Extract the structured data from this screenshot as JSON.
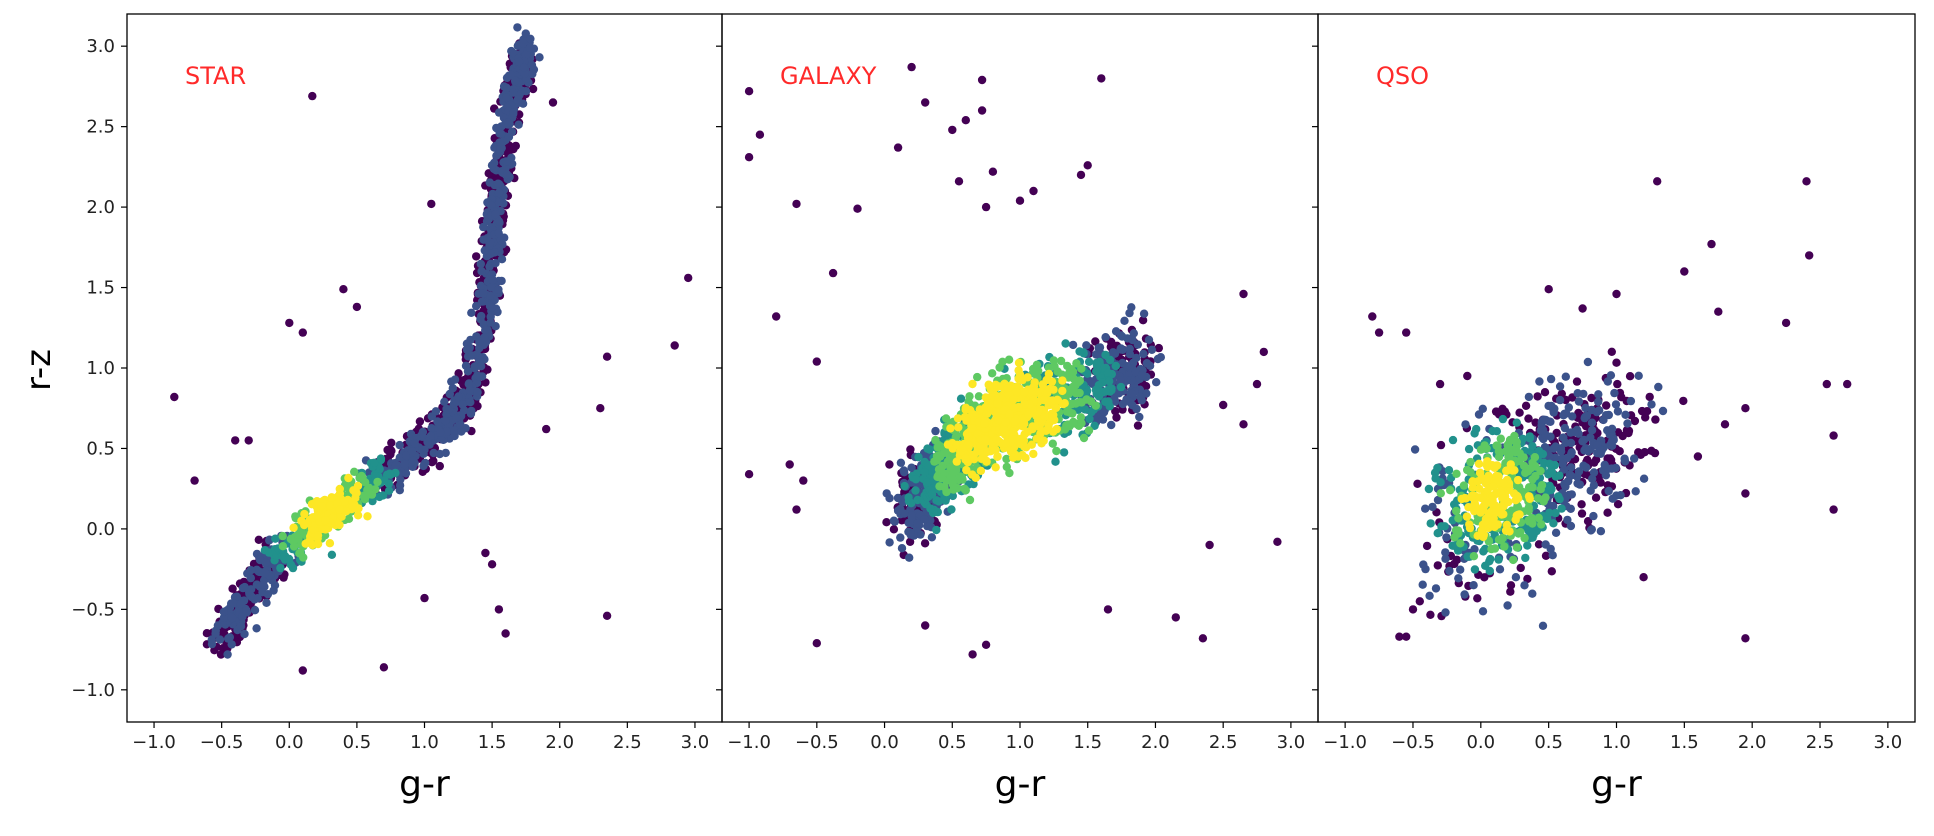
{
  "figure": {
    "ylabel": "r-z",
    "xlabel": "g-r"
  },
  "colors": {
    "marker_colormap": [
      "#440154",
      "#3b528b",
      "#21918c",
      "#5ec962",
      "#fde725"
    ],
    "annotation": "#ff2a2a",
    "axis": "#000000"
  },
  "chart_data": [
    {
      "type": "scatter",
      "annotation": "STAR",
      "xlabel": "g-r",
      "ylabel": "r-z",
      "xlim": [
        -1.2,
        3.2
      ],
      "ylim": [
        -1.2,
        3.2
      ],
      "xticks": [
        -1.0,
        -0.5,
        0.0,
        0.5,
        1.0,
        1.5,
        2.0,
        2.5,
        3.0
      ],
      "yticks": [
        -1.0,
        -0.5,
        0.0,
        0.5,
        1.0,
        1.5,
        2.0,
        2.5,
        3.0
      ],
      "xtick_labels": [
        "−1.0",
        "−0.5",
        "0.0",
        "0.5",
        "1.0",
        "1.5",
        "2.0",
        "2.5",
        "3.0"
      ],
      "ytick_labels": [
        "−1.0",
        "−0.5",
        "0.0",
        "0.5",
        "1.0",
        "1.5",
        "2.0",
        "2.5",
        "3.0"
      ],
      "density_ridge": [
        [
          -0.55,
          -0.72
        ],
        [
          -0.4,
          -0.55
        ],
        [
          -0.25,
          -0.33
        ],
        [
          -0.1,
          -0.18
        ],
        [
          0.1,
          -0.05
        ],
        [
          0.3,
          0.1
        ],
        [
          0.5,
          0.22
        ],
        [
          0.75,
          0.38
        ],
        [
          1.0,
          0.52
        ],
        [
          1.2,
          0.68
        ],
        [
          1.35,
          0.9
        ],
        [
          1.45,
          1.3
        ],
        [
          1.5,
          1.75
        ],
        [
          1.55,
          2.1
        ],
        [
          1.6,
          2.5
        ],
        [
          1.7,
          2.85
        ],
        [
          1.75,
          2.95
        ]
      ],
      "density_peak": [
        0.3,
        0.1
      ],
      "outliers": [
        [
          -0.85,
          0.82
        ],
        [
          -0.7,
          0.3
        ],
        [
          0.17,
          2.69
        ],
        [
          0.1,
          -0.88
        ],
        [
          0.7,
          -0.86
        ],
        [
          1.0,
          -0.43
        ],
        [
          2.3,
          0.75
        ],
        [
          2.35,
          1.07
        ],
        [
          2.35,
          -0.54
        ],
        [
          2.85,
          1.14
        ],
        [
          2.95,
          1.56
        ],
        [
          1.6,
          -0.65
        ],
        [
          1.55,
          -0.5
        ],
        [
          1.95,
          2.65
        ],
        [
          1.9,
          0.62
        ],
        [
          0.0,
          1.28
        ],
        [
          0.1,
          1.22
        ],
        [
          0.4,
          1.49
        ],
        [
          0.5,
          1.38
        ],
        [
          -0.4,
          0.55
        ],
        [
          -0.3,
          0.55
        ],
        [
          1.05,
          2.02
        ],
        [
          1.45,
          -0.15
        ],
        [
          1.5,
          -0.22
        ]
      ]
    },
    {
      "type": "scatter",
      "annotation": "GALAXY",
      "xlabel": "g-r",
      "xlim": [
        -1.2,
        3.2
      ],
      "ylim": [
        -1.2,
        3.2
      ],
      "xticks": [
        -1.0,
        -0.5,
        0.0,
        0.5,
        1.0,
        1.5,
        2.0,
        2.5,
        3.0
      ],
      "xtick_labels": [
        "−1.0",
        "−0.5",
        "0.0",
        "0.5",
        "1.0",
        "1.5",
        "2.0",
        "2.5",
        "3.0"
      ],
      "density_ridge": [
        [
          0.15,
          0.1
        ],
        [
          0.3,
          0.25
        ],
        [
          0.5,
          0.45
        ],
        [
          0.7,
          0.6
        ],
        [
          0.9,
          0.7
        ],
        [
          1.1,
          0.76
        ],
        [
          1.4,
          0.85
        ],
        [
          1.7,
          0.95
        ],
        [
          1.9,
          1.05
        ]
      ],
      "density_peak": [
        0.9,
        0.68
      ],
      "outliers": [
        [
          -1.0,
          2.72
        ],
        [
          -1.0,
          2.31
        ],
        [
          -0.92,
          2.45
        ],
        [
          -1.0,
          0.34
        ],
        [
          -0.8,
          1.32
        ],
        [
          -0.65,
          2.02
        ],
        [
          -0.5,
          1.04
        ],
        [
          -0.38,
          1.59
        ],
        [
          -0.7,
          0.4
        ],
        [
          -0.6,
          0.3
        ],
        [
          -0.65,
          0.12
        ],
        [
          -0.5,
          -0.71
        ],
        [
          -0.2,
          1.99
        ],
        [
          0.1,
          2.37
        ],
        [
          0.2,
          2.87
        ],
        [
          0.3,
          2.65
        ],
        [
          0.5,
          2.48
        ],
        [
          0.6,
          2.54
        ],
        [
          0.72,
          2.79
        ],
        [
          0.72,
          2.6
        ],
        [
          0.55,
          2.16
        ],
        [
          0.8,
          2.22
        ],
        [
          0.75,
          2.0
        ],
        [
          1.0,
          2.04
        ],
        [
          1.1,
          2.1
        ],
        [
          1.5,
          2.26
        ],
        [
          1.6,
          2.8
        ],
        [
          1.45,
          2.2
        ],
        [
          1.65,
          -0.5
        ],
        [
          2.15,
          -0.55
        ],
        [
          2.35,
          -0.68
        ],
        [
          2.4,
          -0.1
        ],
        [
          2.9,
          -0.08
        ],
        [
          2.8,
          1.1
        ],
        [
          2.65,
          1.46
        ],
        [
          2.5,
          0.77
        ],
        [
          2.65,
          0.65
        ],
        [
          2.75,
          0.9
        ],
        [
          0.75,
          -0.72
        ],
        [
          0.65,
          -0.78
        ],
        [
          0.3,
          -0.6
        ]
      ]
    },
    {
      "type": "scatter",
      "annotation": "QSO",
      "xlabel": "g-r",
      "xlim": [
        -1.2,
        3.2
      ],
      "ylim": [
        -1.2,
        3.2
      ],
      "xticks": [
        -1.0,
        -0.5,
        0.0,
        0.5,
        1.0,
        1.5,
        2.0,
        2.5,
        3.0
      ],
      "xtick_labels": [
        "−1.0",
        "−0.5",
        "0.0",
        "0.5",
        "1.0",
        "1.5",
        "2.0",
        "2.5",
        "3.0"
      ],
      "density_ridge": [
        [
          -0.1,
          -0.1
        ],
        [
          0.0,
          0.05
        ],
        [
          0.1,
          0.2
        ],
        [
          0.2,
          0.3
        ],
        [
          0.4,
          0.35
        ],
        [
          0.6,
          0.45
        ],
        [
          0.8,
          0.55
        ],
        [
          1.0,
          0.65
        ]
      ],
      "density_peak": [
        0.1,
        0.2
      ],
      "outliers": [
        [
          -0.8,
          1.32
        ],
        [
          -0.75,
          1.22
        ],
        [
          -0.55,
          1.22
        ],
        [
          -0.6,
          -0.67
        ],
        [
          -0.55,
          -0.67
        ],
        [
          -0.5,
          -0.5
        ],
        [
          -0.45,
          -0.45
        ],
        [
          -0.3,
          0.9
        ],
        [
          -0.1,
          0.95
        ],
        [
          0.5,
          1.49
        ],
        [
          0.75,
          1.37
        ],
        [
          1.0,
          1.46
        ],
        [
          1.3,
          2.16
        ],
        [
          1.5,
          1.6
        ],
        [
          1.7,
          1.77
        ],
        [
          1.95,
          0.75
        ],
        [
          1.95,
          0.22
        ],
        [
          1.95,
          -0.68
        ],
        [
          2.25,
          1.28
        ],
        [
          2.4,
          2.16
        ],
        [
          2.42,
          1.7
        ],
        [
          2.55,
          0.9
        ],
        [
          2.6,
          0.58
        ],
        [
          2.6,
          0.12
        ],
        [
          2.7,
          0.9
        ],
        [
          1.8,
          0.65
        ],
        [
          1.75,
          1.35
        ],
        [
          1.2,
          -0.3
        ],
        [
          1.6,
          0.45
        ]
      ]
    }
  ]
}
